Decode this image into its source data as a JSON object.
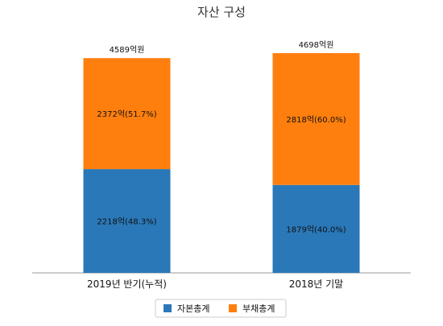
{
  "chart_data": {
    "type": "bar",
    "title": "자산 구성",
    "categories": [
      "2019년 반기(누적)",
      "2018년 기말"
    ],
    "series": [
      {
        "name": "자본총계",
        "color": "#2a78b8",
        "values": [
          2218,
          1879
        ],
        "labels": [
          "2218억(48.3%)",
          "1879억(40.0%)"
        ]
      },
      {
        "name": "부채총계",
        "color": "#ff7f0e",
        "values": [
          2372,
          2818
        ],
        "labels": [
          "2372억(51.7%)",
          "2818억(60.0%)"
        ]
      }
    ],
    "totals": [
      4589,
      4698
    ],
    "total_labels": [
      "4589억원",
      "4698억원"
    ],
    "ylim": [
      0,
      4800
    ],
    "stacked": true,
    "grid": false,
    "legend_position": "bottom-center"
  }
}
